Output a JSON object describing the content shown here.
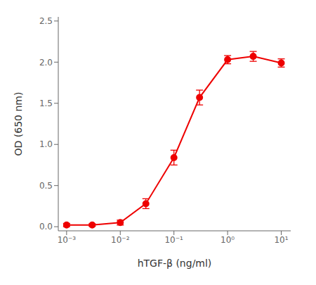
{
  "chart_data": {
    "type": "line",
    "xlabel": "hTGF-β (ng/ml)",
    "ylabel": "OD (650 nm)",
    "x": [
      0.001,
      0.003,
      0.01,
      0.03,
      0.1,
      0.3,
      1.0,
      3.0,
      10.0
    ],
    "values": [
      0.02,
      0.02,
      0.05,
      0.28,
      0.84,
      1.57,
      2.03,
      2.07,
      1.99
    ],
    "yerr": [
      0.02,
      0.015,
      0.03,
      0.06,
      0.09,
      0.09,
      0.05,
      0.06,
      0.05
    ],
    "color": "#ee0000",
    "marker": "circle",
    "line_style": "solid",
    "log": "x",
    "xlim": [
      0.0007,
      15
    ],
    "ylim": [
      -0.05,
      2.55
    ],
    "xticks": [
      {
        "value": 0.001,
        "label": "10⁻³"
      },
      {
        "value": 0.01,
        "label": "10⁻²"
      },
      {
        "value": 0.1,
        "label": "10⁻¹"
      },
      {
        "value": 1,
        "label": "10⁰"
      },
      {
        "value": 10,
        "label": "10¹"
      }
    ],
    "yticks": [
      {
        "value": 0.0,
        "label": "0.0"
      },
      {
        "value": 0.5,
        "label": "0.5"
      },
      {
        "value": 1.0,
        "label": "1.0"
      },
      {
        "value": 1.5,
        "label": "1.5"
      },
      {
        "value": 2.0,
        "label": "2.0"
      },
      {
        "value": 2.5,
        "label": "2.5"
      }
    ],
    "grid": false
  }
}
